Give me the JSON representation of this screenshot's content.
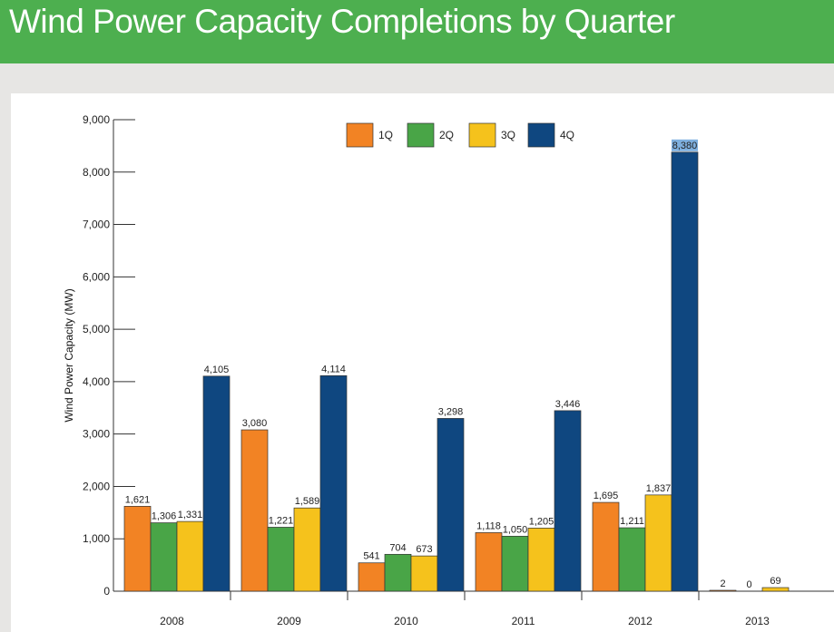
{
  "header": {
    "title": "Wind Power Capacity Completions by Quarter"
  },
  "colors": {
    "header_bg": "#4daf4f",
    "q1": "#f28324",
    "q2": "#49a547",
    "q3": "#f5c21c",
    "q4": "#0f4780",
    "q4_last_label_bg": "#7fb0df"
  },
  "chart_data": {
    "type": "bar",
    "title": "",
    "xlabel": "",
    "ylabel": "Wind Power Capacity (MW)",
    "ylim": [
      0,
      9000
    ],
    "yticks": [
      0,
      1000,
      2000,
      3000,
      4000,
      5000,
      6000,
      7000,
      8000,
      9000
    ],
    "ytick_labels": [
      "0",
      "1,000",
      "2,000",
      "3,000",
      "4,000",
      "5,000",
      "6,000",
      "7,000",
      "8,000",
      "9,000"
    ],
    "grid": false,
    "legend_position": "top-center",
    "categories": [
      "2008",
      "2009",
      "2010",
      "2011",
      "2012",
      "2013"
    ],
    "series": [
      {
        "name": "1Q",
        "color": "#f28324",
        "values": [
          1621,
          3080,
          541,
          1118,
          1695,
          2
        ],
        "labels": [
          "1,621",
          "3,080",
          "541",
          "1,118",
          "1,695",
          "2"
        ]
      },
      {
        "name": "2Q",
        "color": "#49a547",
        "values": [
          1306,
          1221,
          704,
          1050,
          1211,
          0
        ],
        "labels": [
          "1,306",
          "1,221",
          "704",
          "1,050",
          "1,211",
          "0"
        ]
      },
      {
        "name": "3Q",
        "color": "#f5c21c",
        "values": [
          1331,
          1589,
          673,
          1205,
          1837,
          69
        ],
        "labels": [
          "1,331",
          "1,589",
          "673",
          "1,205",
          "1,837",
          "69"
        ]
      },
      {
        "name": "4Q",
        "color": "#0f4780",
        "values": [
          4105,
          4114,
          3298,
          3446,
          8380,
          null
        ],
        "labels": [
          "4,105",
          "4,114",
          "3,298",
          "3,446",
          "8,380",
          ""
        ]
      }
    ]
  }
}
